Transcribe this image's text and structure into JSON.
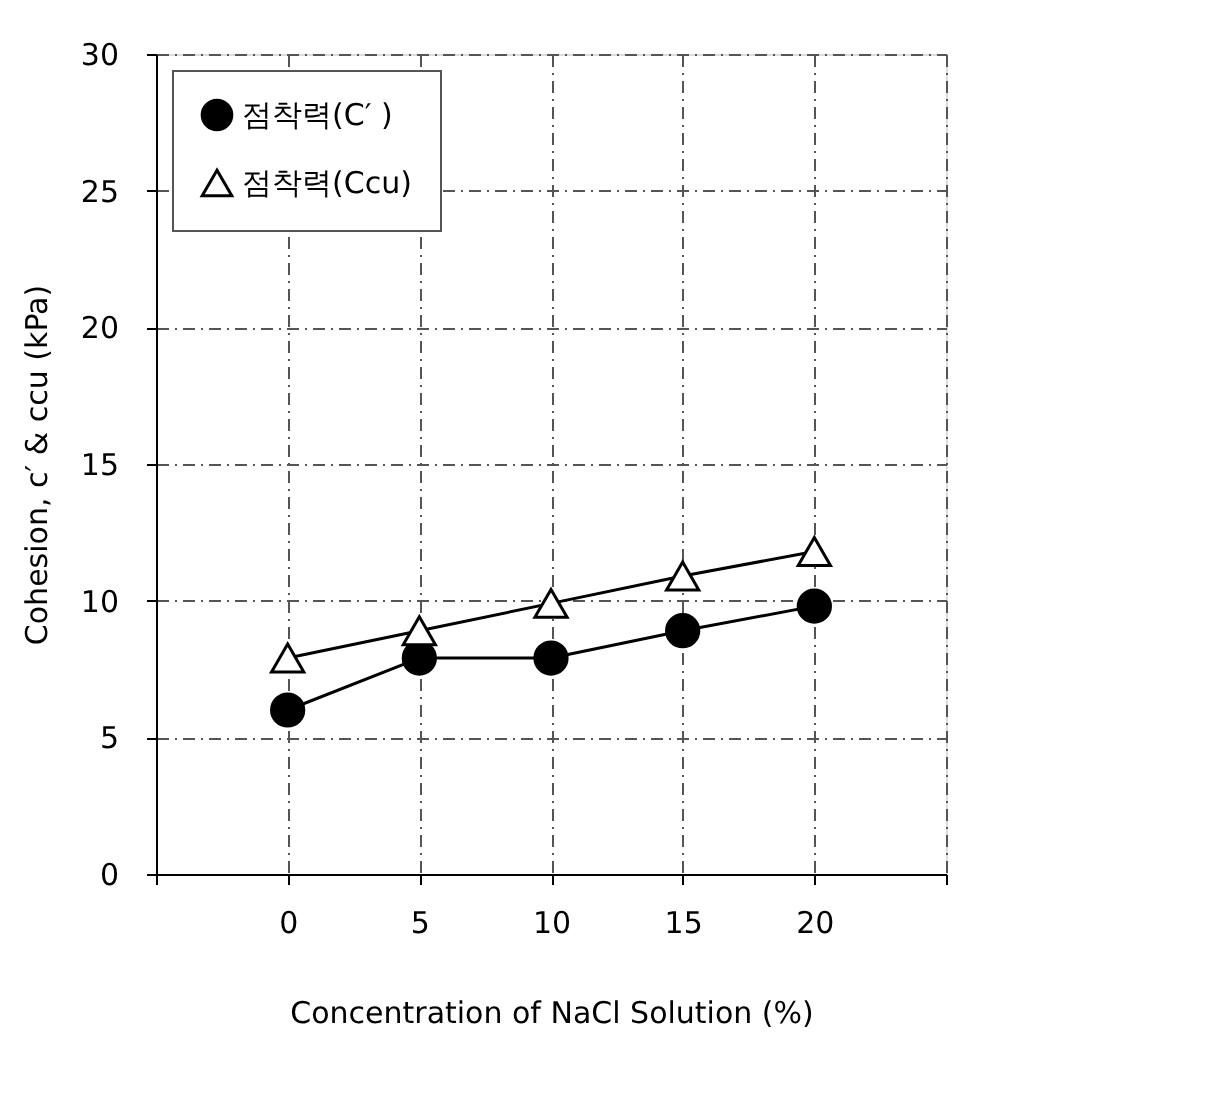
{
  "chart_data": {
    "type": "line",
    "xlabel": "Concentration of NaCl Solution (%)",
    "ylabel": "Cohesion, c′ & ccu (kPa)",
    "x": [
      0,
      5,
      10,
      15,
      20
    ],
    "series": [
      {
        "name": "점착력(C′ )",
        "color": "#000000",
        "marker": "circle",
        "values": [
          6,
          7.9,
          7.9,
          8.9,
          9.8
        ]
      },
      {
        "name": "점착력(Ccu)",
        "color": "#000000",
        "marker": "triangle",
        "values": [
          7.9,
          8.9,
          9.9,
          10.9,
          11.8
        ]
      }
    ],
    "xlim": [
      -5,
      25
    ],
    "xticks": [
      {
        "value": -5,
        "label": null
      },
      0,
      5,
      10,
      15,
      20,
      {
        "value": 25,
        "label": null
      }
    ],
    "ylim": [
      0,
      30
    ],
    "yticks": [
      0,
      5,
      10,
      15,
      20,
      25,
      30
    ],
    "grid": true,
    "legend": "top left",
    "line_style": "solid"
  }
}
